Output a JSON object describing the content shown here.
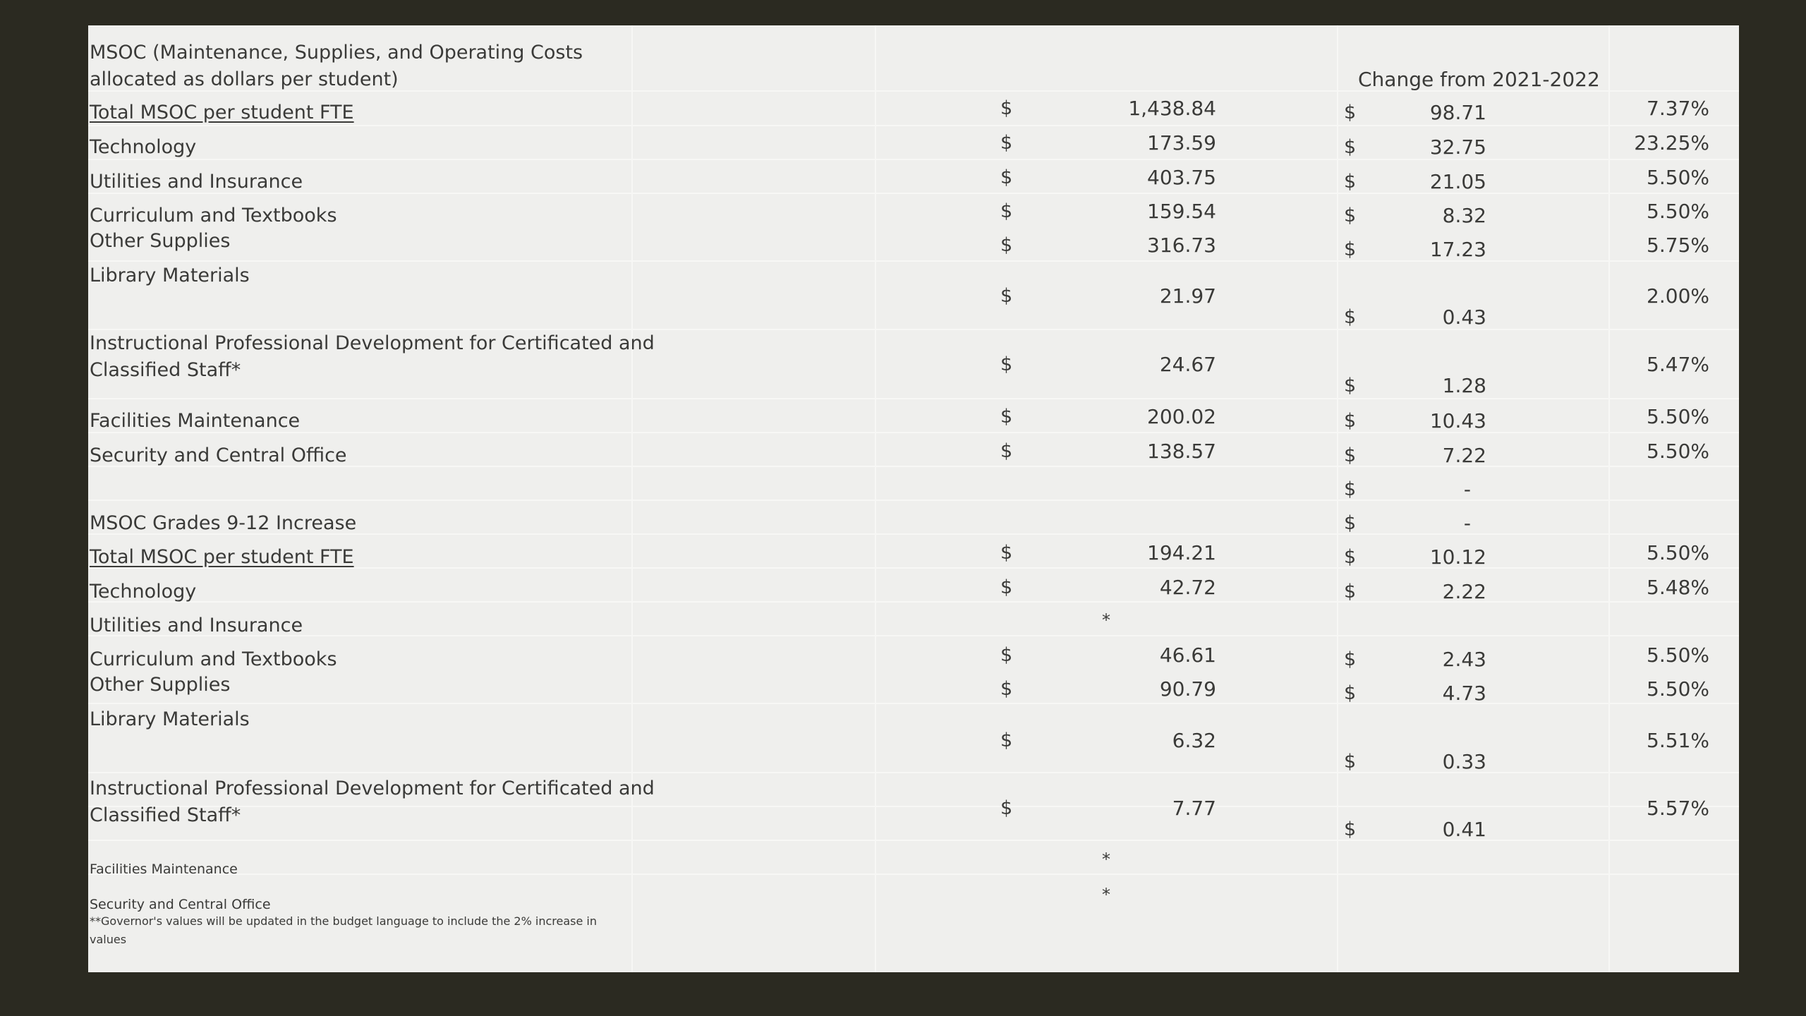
{
  "header": {
    "title_line1": "MSOC (Maintenance, Supplies, and Operating Costs",
    "title_line2": "allocated as dollars per student)",
    "change_label": "Change from 2021-2022"
  },
  "currency_symbol": "$",
  "section1": {
    "rows": [
      {
        "label": "Total MSOC per student FTE",
        "amount": "1,438.84",
        "change": "98.71",
        "pct": "7.37%"
      },
      {
        "label": "Technology",
        "amount": "173.59",
        "change": "32.75",
        "pct": "23.25%"
      },
      {
        "label": "Utilities and Insurance",
        "amount": "403.75",
        "change": "21.05",
        "pct": "5.50%"
      },
      {
        "label": "Curriculum and Textbooks",
        "amount": "159.54",
        "change": "8.32",
        "pct": "5.50%"
      },
      {
        "label": "Other Supplies",
        "amount": "316.73",
        "change": "17.23",
        "pct": "5.75%"
      },
      {
        "label": "Library Materials",
        "amount": "21.97",
        "change": "0.43",
        "pct": "2.00%"
      },
      {
        "label_line1": "Instructional Professional Development for Certificated and",
        "label_line2": "Classified Staff*",
        "amount": "24.67",
        "change": "1.28",
        "pct": "5.47%"
      },
      {
        "label": "Facilities Maintenance",
        "amount": "200.02",
        "change": "10.43",
        "pct": "5.50%"
      },
      {
        "label": "Security and Central Office",
        "amount": "138.57",
        "change": "7.22",
        "pct": "5.50%"
      }
    ],
    "blank_change": "-"
  },
  "section2": {
    "title": "MSOC Grades 9-12 Increase",
    "blank_change": "-",
    "asterisk": "*",
    "rows": [
      {
        "label": "Total MSOC per student FTE",
        "amount": "194.21",
        "change": "10.12",
        "pct": "5.50%"
      },
      {
        "label": "Technology",
        "amount": "42.72",
        "change": "2.22",
        "pct": "5.48%"
      },
      {
        "label": "Utilities and Insurance"
      },
      {
        "label": "Curriculum and Textbooks",
        "amount": "46.61",
        "change": "2.43",
        "pct": "5.50%"
      },
      {
        "label": "Other Supplies",
        "amount": "90.79",
        "change": "4.73",
        "pct": "5.50%"
      },
      {
        "label": "Library Materials",
        "amount": "6.32",
        "change": "0.33",
        "pct": "5.51%"
      },
      {
        "label_line1": "Instructional Professional Development for Certificated and",
        "label_line2": "Classified Staff*",
        "amount": "7.77",
        "change": "0.41",
        "pct": "5.57%"
      },
      {
        "label": "Facilities Maintenance"
      },
      {
        "label": "Security and Central Office"
      }
    ],
    "footnote_line1": "**Governor's values will be updated in the budget language to include the 2% increase in",
    "footnote_line2": "values"
  }
}
